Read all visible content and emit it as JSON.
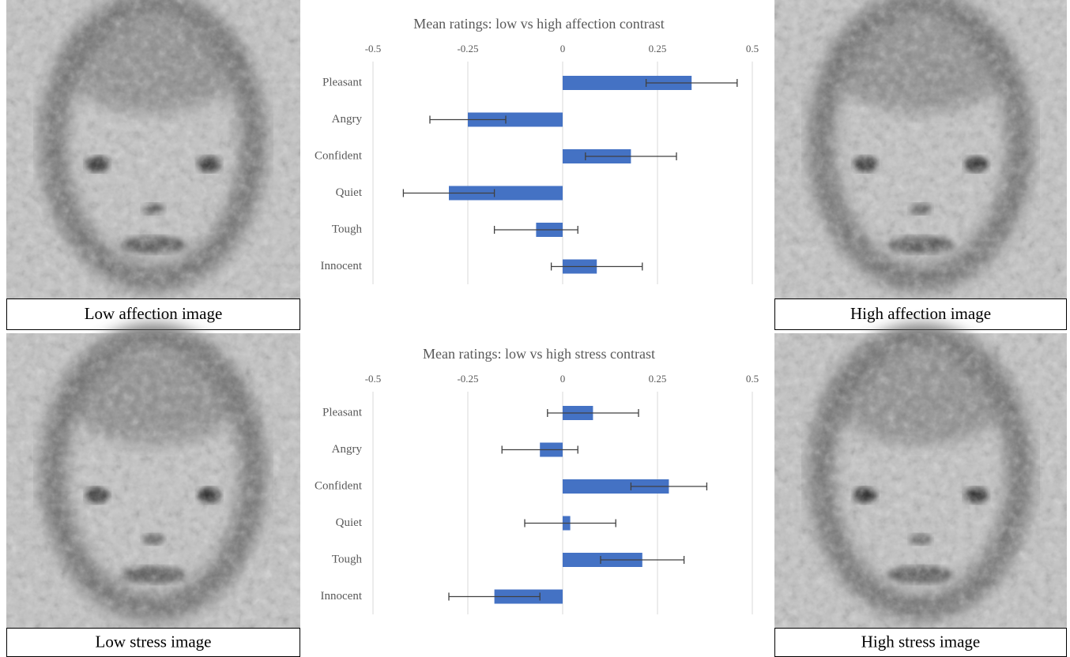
{
  "images": [
    {
      "caption": "Low affection image"
    },
    {
      "caption": "High affection image"
    },
    {
      "caption": "Low stress image"
    },
    {
      "caption": "High stress image"
    }
  ],
  "chart_data": [
    {
      "type": "bar",
      "orientation": "horizontal",
      "title": "Mean ratings: low vs high affection contrast",
      "categories": [
        "Pleasant",
        "Angry",
        "Confident",
        "Quiet",
        "Tough",
        "Innocent"
      ],
      "values": [
        0.34,
        -0.25,
        0.18,
        -0.3,
        -0.07,
        0.09
      ],
      "errors": [
        0.12,
        0.1,
        0.12,
        0.12,
        0.11,
        0.12
      ],
      "color": "#4472c4",
      "xlim": [
        -0.5,
        0.5
      ],
      "xticks": [
        -0.5,
        -0.25,
        0,
        0.25,
        0.5
      ],
      "grid": true
    },
    {
      "type": "bar",
      "orientation": "horizontal",
      "title": "Mean ratings: low vs high stress contrast",
      "categories": [
        "Pleasant",
        "Angry",
        "Confident",
        "Quiet",
        "Tough",
        "Innocent"
      ],
      "values": [
        0.08,
        -0.06,
        0.28,
        0.02,
        0.21,
        -0.18
      ],
      "errors": [
        0.12,
        0.1,
        0.1,
        0.12,
        0.11,
        0.12
      ],
      "color": "#4472c4",
      "xlim": [
        -0.5,
        0.5
      ],
      "xticks": [
        -0.5,
        -0.25,
        0,
        0.25,
        0.5
      ],
      "grid": true
    }
  ]
}
